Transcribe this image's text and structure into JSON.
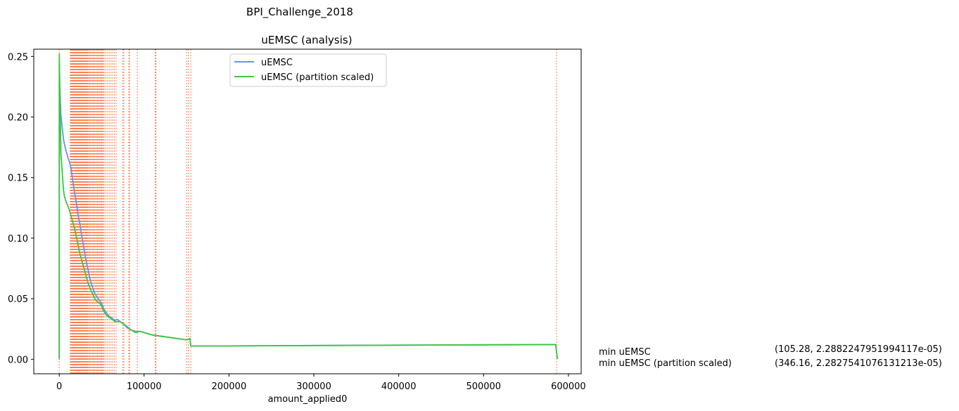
{
  "suptitle": "BPI_Challenge_2018",
  "chart_data": {
    "type": "line",
    "title": "uEMSC (analysis)",
    "xlabel": "amount_applied0",
    "ylabel": "",
    "xlim": [
      -30000,
      615000
    ],
    "ylim": [
      -0.012,
      0.256
    ],
    "xticks": [
      0,
      100000,
      200000,
      300000,
      400000,
      500000,
      600000
    ],
    "yticks": [
      0.0,
      0.05,
      0.1,
      0.15,
      0.2,
      0.25
    ],
    "ytick_labels": [
      "0.00",
      "0.05",
      "0.10",
      "0.15",
      "0.20",
      "0.25"
    ],
    "legend": {
      "placement": "upper-center",
      "entries": [
        "uEMSC",
        "uEMSC (partition scaled)"
      ]
    },
    "grid": false,
    "colors": {
      "uemsc": "#6495ED",
      "partition": "#3CC63C",
      "vlines": "#FF7F50",
      "mark": "#FF7F50"
    },
    "series": [
      {
        "name": "uEMSC",
        "color": "#6495ED",
        "x": [
          0,
          100,
          300,
          600,
          1000,
          1500,
          2000,
          3000,
          4000,
          5000,
          6000,
          8000,
          10000,
          12000,
          14000,
          16000,
          18000,
          20000,
          22000,
          24000,
          26000,
          28000,
          30000,
          32000,
          34000,
          36000,
          38000,
          40000,
          42000,
          44000,
          46000,
          48000,
          50000,
          52000,
          54000,
          56000,
          58000,
          60000,
          62000,
          64000,
          66000,
          68000,
          70000,
          72000,
          74000,
          76000,
          80000,
          85000,
          90000,
          95000,
          100000,
          110000,
          120000,
          130000,
          140000,
          150000,
          154000,
          155000,
          200000,
          300000,
          400000,
          500000,
          585000,
          587000
        ],
        "y": [
          0.0,
          0.244,
          0.235,
          0.226,
          0.22,
          0.21,
          0.202,
          0.195,
          0.188,
          0.182,
          0.178,
          0.172,
          0.167,
          0.163,
          0.157,
          0.147,
          0.138,
          0.13,
          0.12,
          0.113,
          0.104,
          0.096,
          0.088,
          0.08,
          0.074,
          0.067,
          0.062,
          0.058,
          0.054,
          0.052,
          0.05,
          0.048,
          0.046,
          0.042,
          0.04,
          0.038,
          0.036,
          0.035,
          0.034,
          0.033,
          0.032,
          0.033,
          0.032,
          0.031,
          0.03,
          0.029,
          0.027,
          0.024,
          0.023,
          0.023,
          0.022,
          0.02,
          0.019,
          0.018,
          0.017,
          0.016,
          0.017,
          0.011,
          0.011,
          0.0113,
          0.0116,
          0.0119,
          0.0121,
          0.0003
        ]
      },
      {
        "name": "uEMSC (partition scaled)",
        "color": "#3CC63C",
        "x": [
          0,
          100,
          300,
          600,
          1000,
          1500,
          2000,
          3000,
          4000,
          5000,
          6000,
          8000,
          10000,
          12000,
          14000,
          16000,
          18000,
          20000,
          22000,
          24000,
          26000,
          28000,
          30000,
          32000,
          34000,
          36000,
          38000,
          40000,
          42000,
          44000,
          46000,
          48000,
          50000,
          52000,
          54000,
          56000,
          58000,
          60000,
          62000,
          64000,
          66000,
          68000,
          70000,
          72000,
          74000,
          76000,
          80000,
          85000,
          90000,
          95000,
          100000,
          110000,
          120000,
          130000,
          140000,
          150000,
          154000,
          155000,
          200000,
          300000,
          400000,
          500000,
          585000,
          587000
        ],
        "y": [
          0.0,
          0.252,
          0.24,
          0.228,
          0.205,
          0.19,
          0.17,
          0.16,
          0.15,
          0.14,
          0.135,
          0.13,
          0.127,
          0.123,
          0.118,
          0.113,
          0.108,
          0.102,
          0.095,
          0.088,
          0.083,
          0.078,
          0.073,
          0.068,
          0.063,
          0.059,
          0.056,
          0.053,
          0.05,
          0.048,
          0.047,
          0.046,
          0.044,
          0.04,
          0.038,
          0.036,
          0.035,
          0.034,
          0.033,
          0.032,
          0.031,
          0.031,
          0.031,
          0.031,
          0.03,
          0.029,
          0.026,
          0.024,
          0.022,
          0.023,
          0.022,
          0.02,
          0.019,
          0.018,
          0.017,
          0.016,
          0.017,
          0.011,
          0.011,
          0.0113,
          0.0116,
          0.0119,
          0.0121,
          0.0003
        ]
      }
    ],
    "partition_boundaries_x": [
      0,
      13000,
      13500,
      14000,
      14500,
      15000,
      15500,
      16000,
      16500,
      17000,
      17500,
      18000,
      18500,
      19000,
      19500,
      20000,
      20500,
      21000,
      21500,
      22000,
      22500,
      23000,
      23500,
      24000,
      24500,
      25000,
      25500,
      26000,
      26500,
      27000,
      27500,
      28000,
      28500,
      29000,
      29500,
      30000,
      30500,
      31000,
      31500,
      32000,
      32500,
      33000,
      33500,
      34000,
      35000,
      36000,
      37000,
      38000,
      39000,
      40000,
      41000,
      42000,
      43000,
      44000,
      45000,
      46000,
      47000,
      48000,
      49000,
      50000,
      51000,
      52000,
      53000,
      55000,
      57000,
      59000,
      61000,
      63000,
      65000,
      67000,
      75000,
      76000,
      82000,
      83000,
      92000,
      113000,
      114000,
      150000,
      152000,
      155000,
      586000
    ],
    "min_markers": [
      {
        "label": "min uEMSC",
        "value": "(105.28, 2.2882247951994117e-05)"
      },
      {
        "label": "min uEMSC (partition scaled)",
        "value": "(346.16, 2.2827541076131213e-05)"
      }
    ]
  }
}
